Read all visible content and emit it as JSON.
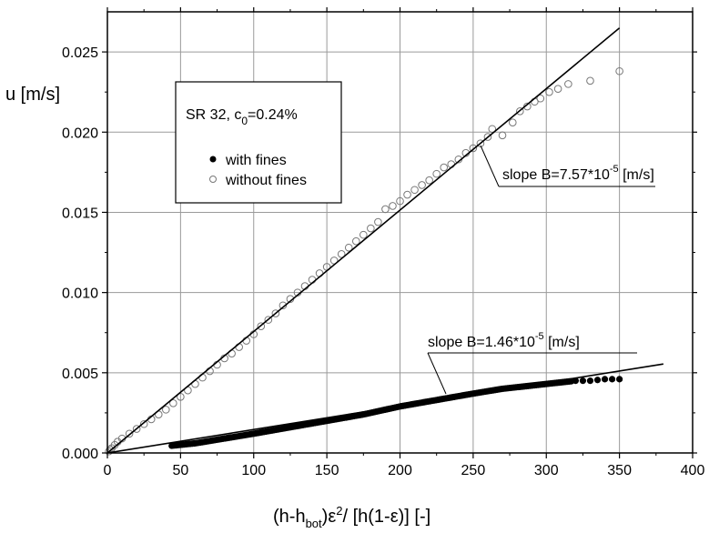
{
  "chart_data": {
    "type": "scatter",
    "xlabel": "(h-h_bot)ε²/ [h(1-ε)]  [-]",
    "ylabel": "u [m/s]",
    "xlim": [
      0,
      400
    ],
    "ylim": [
      0,
      0.0275
    ],
    "x_ticks": [
      "0",
      "50",
      "100",
      "150",
      "200",
      "250",
      "300",
      "350",
      "400"
    ],
    "y_ticks": [
      "0.000",
      "0.005",
      "0.010",
      "0.015",
      "0.020",
      "0.025"
    ],
    "x_tick_values": [
      0,
      50,
      100,
      150,
      200,
      250,
      300,
      350,
      400
    ],
    "y_tick_values": [
      0,
      0.005,
      0.01,
      0.015,
      0.02,
      0.025
    ],
    "grid": true,
    "legend": {
      "title_main": "SR 32,  c",
      "title_sub": "0",
      "title_tail": "=0.24%",
      "placement": "top-left",
      "entries": [
        "with fines",
        "without fines"
      ]
    },
    "series": [
      {
        "name": "with fines",
        "marker": "filled-circle",
        "color": "#000000",
        "x_range": [
          44,
          350
        ],
        "y_range": [
          0.0004,
          0.0046
        ],
        "points": [
          [
            44,
            0.00045
          ],
          [
            60,
            0.0006
          ],
          [
            80,
            0.0009
          ],
          [
            100,
            0.0012
          ],
          [
            125,
            0.0016
          ],
          [
            150,
            0.002
          ],
          [
            175,
            0.0024
          ],
          [
            200,
            0.0029
          ],
          [
            225,
            0.0033
          ],
          [
            250,
            0.0037
          ],
          [
            270,
            0.004
          ],
          [
            290,
            0.0042
          ],
          [
            310,
            0.0044
          ],
          [
            320,
            0.0045
          ],
          [
            330,
            0.0045
          ],
          [
            340,
            0.0046
          ],
          [
            350,
            0.0046
          ]
        ]
      },
      {
        "name": "without fines",
        "marker": "open-circle",
        "color": "#777777",
        "points": [
          [
            1,
            0.0001
          ],
          [
            2,
            0.0002
          ],
          [
            3,
            0.0003
          ],
          [
            5,
            0.0005
          ],
          [
            7,
            0.0007
          ],
          [
            10,
            0.0009
          ],
          [
            15,
            0.0012
          ],
          [
            20,
            0.0015
          ],
          [
            25,
            0.0018
          ],
          [
            30,
            0.0021
          ],
          [
            35,
            0.0024
          ],
          [
            40,
            0.0027
          ],
          [
            45,
            0.0031
          ],
          [
            50,
            0.0035
          ],
          [
            55,
            0.0039
          ],
          [
            60,
            0.0043
          ],
          [
            65,
            0.0047
          ],
          [
            70,
            0.0051
          ],
          [
            75,
            0.0055
          ],
          [
            80,
            0.0059
          ],
          [
            85,
            0.0062
          ],
          [
            90,
            0.0066
          ],
          [
            95,
            0.007
          ],
          [
            100,
            0.0074
          ],
          [
            105,
            0.0079
          ],
          [
            110,
            0.0083
          ],
          [
            115,
            0.0087
          ],
          [
            120,
            0.0092
          ],
          [
            125,
            0.0096
          ],
          [
            130,
            0.01
          ],
          [
            135,
            0.0104
          ],
          [
            140,
            0.0108
          ],
          [
            145,
            0.0112
          ],
          [
            150,
            0.0116
          ],
          [
            155,
            0.012
          ],
          [
            160,
            0.0124
          ],
          [
            165,
            0.0128
          ],
          [
            170,
            0.0132
          ],
          [
            175,
            0.0136
          ],
          [
            180,
            0.014
          ],
          [
            185,
            0.0144
          ],
          [
            190,
            0.0152
          ],
          [
            195,
            0.0154
          ],
          [
            200,
            0.0157
          ],
          [
            205,
            0.0161
          ],
          [
            210,
            0.0164
          ],
          [
            215,
            0.0167
          ],
          [
            220,
            0.017
          ],
          [
            225,
            0.0174
          ],
          [
            230,
            0.0178
          ],
          [
            235,
            0.018
          ],
          [
            240,
            0.0183
          ],
          [
            245,
            0.0187
          ],
          [
            250,
            0.019
          ],
          [
            255,
            0.0193
          ],
          [
            260,
            0.0197
          ],
          [
            263,
            0.0202
          ],
          [
            270,
            0.0198
          ],
          [
            277,
            0.0206
          ],
          [
            282,
            0.0213
          ],
          [
            287,
            0.0216
          ],
          [
            292,
            0.0219
          ],
          [
            296,
            0.0221
          ],
          [
            302,
            0.0225
          ],
          [
            308,
            0.0227
          ],
          [
            315,
            0.023
          ],
          [
            330,
            0.0232
          ],
          [
            350,
            0.0238
          ]
        ]
      }
    ],
    "fit_lines": [
      {
        "series": "without fines",
        "slope": 7.57e-05,
        "x_range": [
          0,
          350
        ]
      },
      {
        "series": "with fines",
        "slope": 1.46e-05,
        "x_range": [
          0,
          380
        ]
      }
    ],
    "annotations": [
      {
        "text_main": "slope B=7.57*10",
        "text_sup": "-5",
        "text_tail": " [m/s]",
        "target": "without fines fit"
      },
      {
        "text_main": "slope B=1.46*10",
        "text_sup": "-5",
        "text_tail": " [m/s]",
        "target": "with fines fit"
      }
    ]
  }
}
